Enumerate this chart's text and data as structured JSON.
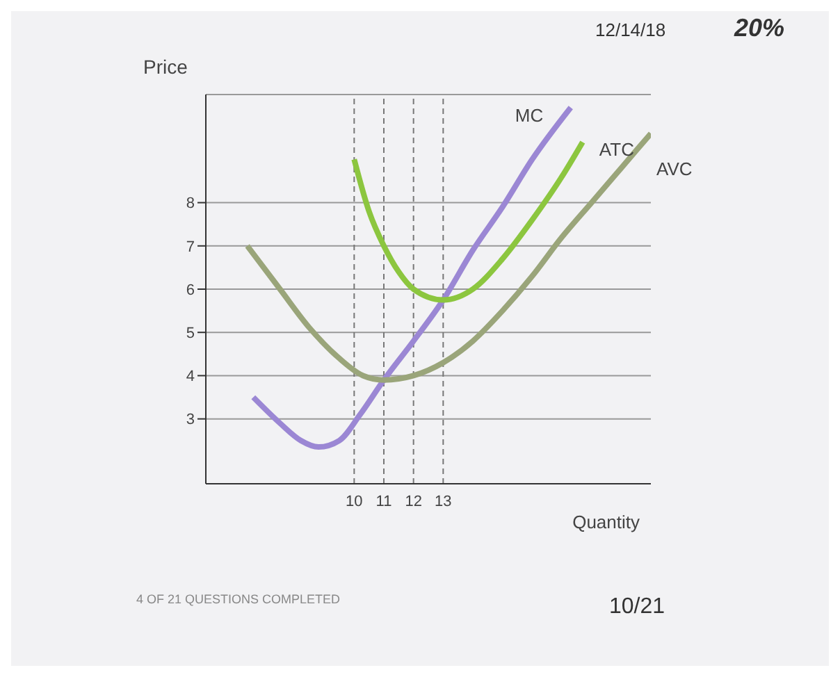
{
  "chart_data": {
    "type": "line",
    "xlabel": "Quantity",
    "ylabel": "Price",
    "xlim": [
      5,
      20
    ],
    "ylim": [
      1.5,
      10.5
    ],
    "xticks": [
      10,
      11,
      12,
      13
    ],
    "yticks": [
      3,
      4,
      5,
      6,
      7,
      8
    ],
    "grid": "y",
    "marker": "none",
    "line_style": "solid",
    "series": [
      {
        "name": "MC",
        "color": "#9b87d4",
        "x": [
          6.6,
          7.5,
          8.2,
          8.8,
          9.5,
          10.2,
          11,
          12,
          13,
          14,
          15,
          16,
          17.3
        ],
        "values": [
          3.5,
          2.9,
          2.5,
          2.35,
          2.5,
          3.1,
          3.9,
          4.8,
          5.75,
          6.9,
          7.9,
          9.0,
          10.2
        ]
      },
      {
        "name": "ATC",
        "color": "#8cc63f",
        "x": [
          10,
          10.5,
          11,
          11.5,
          12,
          13,
          14,
          15,
          16,
          17,
          17.7
        ],
        "values": [
          9.0,
          7.8,
          7.0,
          6.4,
          6.0,
          5.75,
          6.0,
          6.7,
          7.6,
          8.6,
          9.4
        ]
      },
      {
        "name": "AVC",
        "color": "#9aa57a",
        "x": [
          6.4,
          7.5,
          8.5,
          9.5,
          10.3,
          11,
          12,
          13,
          14,
          15,
          16,
          17,
          18,
          19,
          20
        ],
        "values": [
          7.0,
          6.0,
          5.1,
          4.4,
          4.0,
          3.9,
          4.0,
          4.3,
          4.8,
          5.5,
          6.3,
          7.2,
          8.0,
          8.8,
          9.6
        ]
      }
    ],
    "ref_lines": [
      {
        "axis": "x",
        "value": 10,
        "line_style": "dashed",
        "color": "#777777"
      },
      {
        "axis": "x",
        "value": 11,
        "line_style": "dashed",
        "color": "#777777"
      },
      {
        "axis": "x",
        "value": 12,
        "line_style": "dashed",
        "color": "#777777"
      },
      {
        "axis": "x",
        "value": 13,
        "line_style": "dashed",
        "color": "#777777"
      }
    ],
    "annotations": [
      "12/14/18",
      "20%",
      "4 OF 21 QUESTIONS COMPLETED",
      "10/21"
    ]
  }
}
